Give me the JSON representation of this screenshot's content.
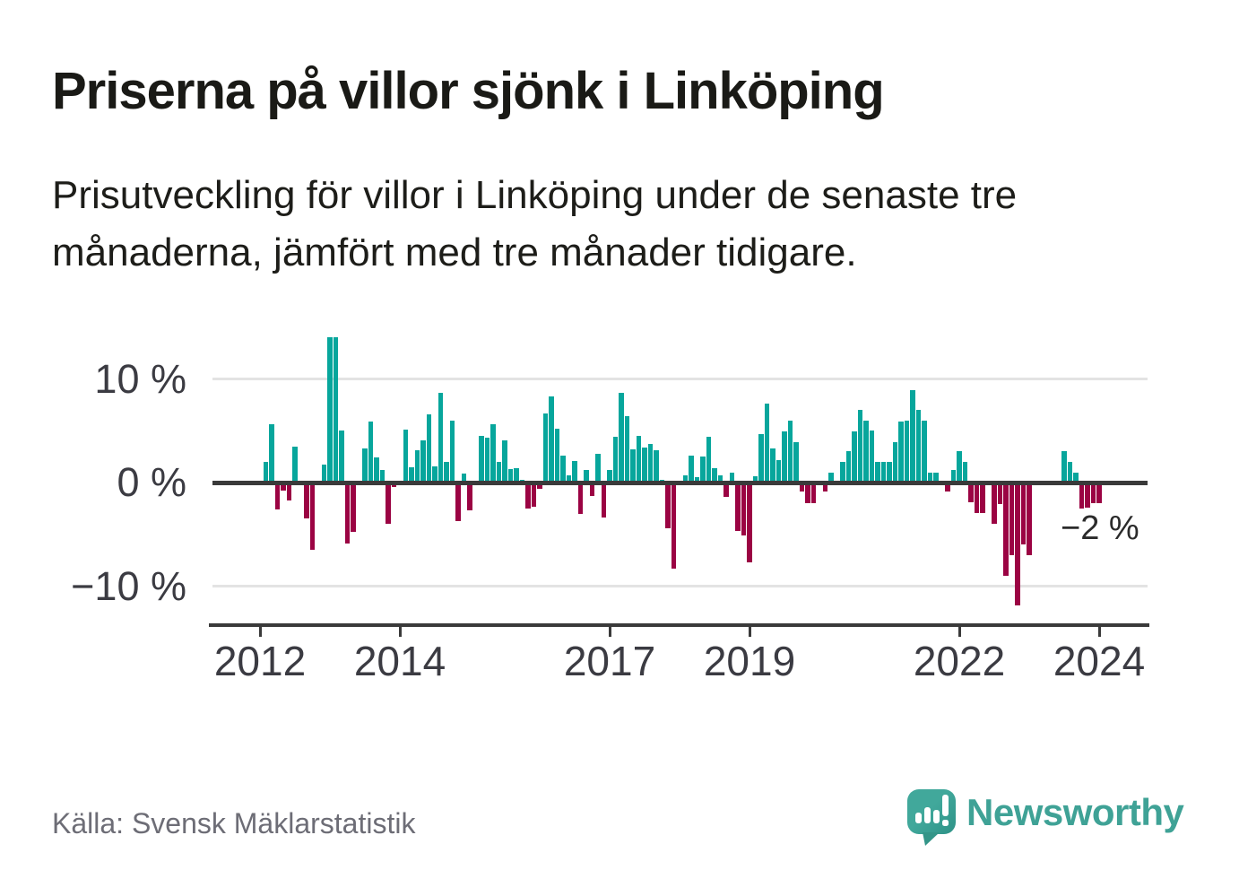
{
  "header": {
    "title": "Priserna på villor sjönk i Linköping",
    "subtitle_lines": [
      "Prisutveckling för villor i Linköping under de senaste tre",
      "månaderna, jämfört med tre månader tidigare."
    ]
  },
  "chart_data": {
    "type": "bar",
    "title": "Priserna på villor sjönk i Linköping",
    "xlabel": "",
    "ylabel": "%",
    "unit": "%",
    "frequency": "monthly",
    "start_month": "2012-02",
    "end_month": "2024-01",
    "values": [
      2.0,
      5.6,
      -2.6,
      -0.8,
      -1.7,
      3.5,
      null,
      -3.5,
      -6.5,
      -0.2,
      1.7,
      14.0,
      14.0,
      5.0,
      -5.9,
      -4.8,
      null,
      3.3,
      5.9,
      2.4,
      1.2,
      -4.0,
      -0.4,
      null,
      5.1,
      1.5,
      3.1,
      4.1,
      6.6,
      1.6,
      8.7,
      2.0,
      6.0,
      -3.7,
      0.9,
      -2.7,
      null,
      4.5,
      4.3,
      5.6,
      2.0,
      4.1,
      1.3,
      1.4,
      0.3,
      -2.5,
      -2.3,
      -0.6,
      6.7,
      8.3,
      5.2,
      2.6,
      0.7,
      2.1,
      -3.0,
      1.2,
      -1.3,
      2.8,
      -3.4,
      1.2,
      4.4,
      8.7,
      6.4,
      3.2,
      4.5,
      3.4,
      3.7,
      3.1,
      0.3,
      -4.4,
      -8.3,
      null,
      0.7,
      2.6,
      0.5,
      2.5,
      4.4,
      1.4,
      0.7,
      -1.4,
      1.0,
      -4.7,
      -5.1,
      -7.7,
      0.6,
      4.7,
      7.6,
      3.3,
      2.2,
      4.9,
      6.0,
      3.9,
      -0.9,
      -2.0,
      -2.0,
      null,
      -0.9,
      1.0,
      null,
      2.0,
      3.0,
      4.9,
      7.0,
      6.0,
      5.0,
      2.0,
      2.0,
      2.0,
      3.9,
      5.9,
      6.0,
      8.9,
      7.0,
      6.0,
      1.0,
      1.0,
      null,
      -0.9,
      1.2,
      3.0,
      2.0,
      -1.9,
      -2.9,
      -2.9,
      null,
      -4.0,
      -2.1,
      -9.0,
      -7.0,
      -11.9,
      -6.0,
      -7.0,
      null,
      null,
      null,
      null,
      null,
      3.0,
      2.0,
      1.0,
      -2.5,
      -2.4,
      -2.0,
      -2.0
    ],
    "y_ticks": [
      {
        "label": "10 %",
        "value": 10
      },
      {
        "label": "0 %",
        "value": 0
      },
      {
        "label": "−10 %",
        "value": -10
      }
    ],
    "x_ticks": [
      {
        "label": "2012",
        "year": 2012
      },
      {
        "label": "2014",
        "year": 2014
      },
      {
        "label": "2017",
        "year": 2017
      },
      {
        "label": "2019",
        "year": 2019
      },
      {
        "label": "2022",
        "year": 2022
      },
      {
        "label": "2024",
        "year": 2024
      }
    ],
    "ylim": [
      -13.8,
      14.5
    ],
    "grid": "horizontal gridlines at 10 % and −10 %, bold zero line",
    "legend": "none",
    "annotation": {
      "label": "−2 %",
      "value": -2,
      "month": "2024-01"
    },
    "colors": {
      "positive": "#07a69c",
      "negative": "#9b0343"
    }
  },
  "footer": {
    "source": "Källa: Svensk Mäklarstatistik",
    "brand": "Newsworthy",
    "brand_color": "#3fa296"
  }
}
